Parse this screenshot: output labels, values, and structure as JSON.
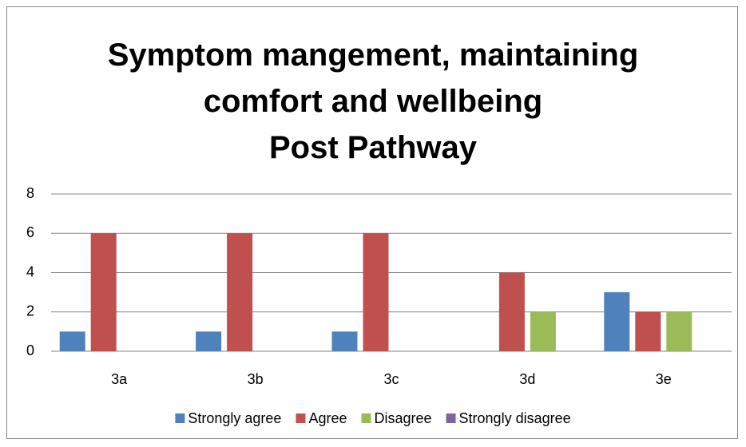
{
  "chart_data": {
    "type": "bar",
    "title": "Symptom mangement, maintaining comfort and wellbeing",
    "subtitle": "Post Pathway",
    "categories": [
      "3a",
      "3b",
      "3c",
      "3d",
      "3e"
    ],
    "series": [
      {
        "name": "Strongly agree",
        "color": "#4f81bd",
        "values": [
          1,
          1,
          1,
          0,
          3
        ]
      },
      {
        "name": "Agree",
        "color": "#c0504d",
        "values": [
          6,
          6,
          6,
          4,
          2
        ]
      },
      {
        "name": "Disagree",
        "color": "#9bbb59",
        "values": [
          0,
          0,
          0,
          2,
          2
        ]
      },
      {
        "name": "Strongly disagree",
        "color": "#8064a2",
        "values": [
          0,
          0,
          0,
          0,
          0
        ]
      }
    ],
    "ylim": [
      0,
      8
    ],
    "yticks": [
      0,
      2,
      4,
      6,
      8
    ],
    "grid": true,
    "legend": "bottom"
  }
}
